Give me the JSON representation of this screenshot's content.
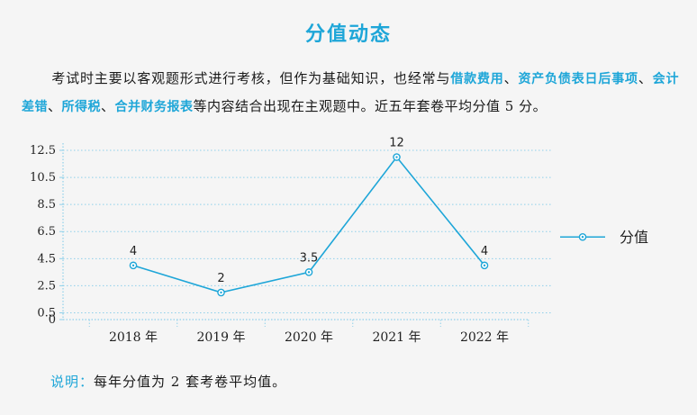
{
  "header": {
    "title": "分值动态"
  },
  "intro": {
    "text_1": "考试时主要以客观题形式进行考核，但作为基础知识，也经常与",
    "hl_1": "借款费用",
    "sep_1": "、",
    "hl_2": "资产负债表日后事项",
    "sep_2": "、",
    "hl_3": "会计差错",
    "sep_3": "、",
    "hl_4": "所得税",
    "sep_4": "、",
    "hl_5": "合并财务报表",
    "text_2": "等内容结合出现在主观题中。近五年套卷平均分值 5 分。"
  },
  "chart_data": {
    "type": "line",
    "title": "",
    "xlabel": "",
    "ylabel": "",
    "categories": [
      "2018 年",
      "2019 年",
      "2020 年",
      "2021 年",
      "2022 年"
    ],
    "series": [
      {
        "name": "分值",
        "values": [
          4,
          2,
          3.5,
          12,
          4
        ],
        "labels": [
          "4",
          "2",
          "3.5",
          "12",
          "4"
        ]
      }
    ],
    "yticks": [
      0,
      0.5,
      2.5,
      4.5,
      6.5,
      8.5,
      10.5,
      12.5
    ],
    "ytick_labels": [
      "0",
      "0.5",
      "2.5",
      "4.5",
      "6.5",
      "8.5",
      "10.5",
      "12.5"
    ],
    "ylim": [
      0,
      12.5
    ],
    "grid": true,
    "legend": "right",
    "line_color": "#1ea6d8",
    "grid_color": "#8fd0ea"
  },
  "note": {
    "label": "说明：",
    "text": "每年分值为 2 套考卷平均值。"
  }
}
